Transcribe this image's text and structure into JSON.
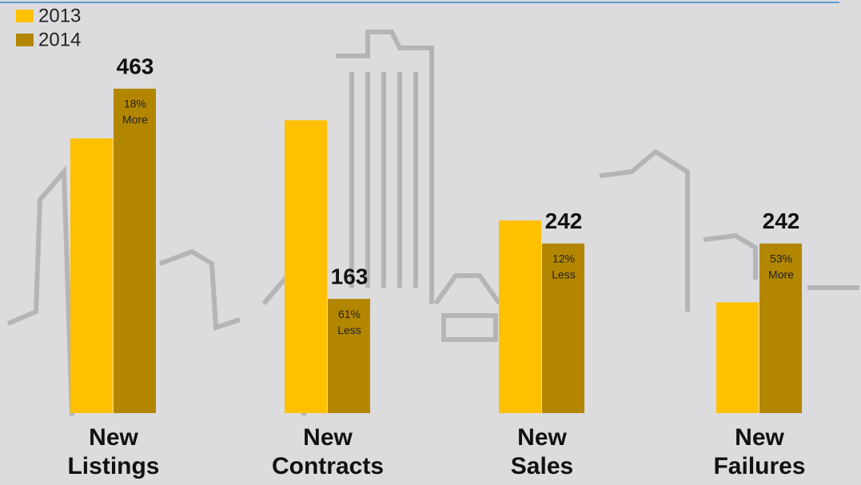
{
  "chart_data": {
    "type": "bar",
    "categories": [
      "New Listings",
      "New Contracts",
      "New Sales",
      "New Failures"
    ],
    "series": [
      {
        "name": "2013",
        "color": "#ffc000",
        "values": [
          392,
          418,
          275,
          158
        ]
      },
      {
        "name": "2014",
        "color": "#b38600",
        "values": [
          463,
          163,
          242,
          242
        ],
        "annotations": [
          [
            "18%",
            "More"
          ],
          [
            "61%",
            "Less"
          ],
          [
            "12%",
            "Less"
          ],
          [
            "53%",
            "More"
          ]
        ]
      }
    ]
  }
}
